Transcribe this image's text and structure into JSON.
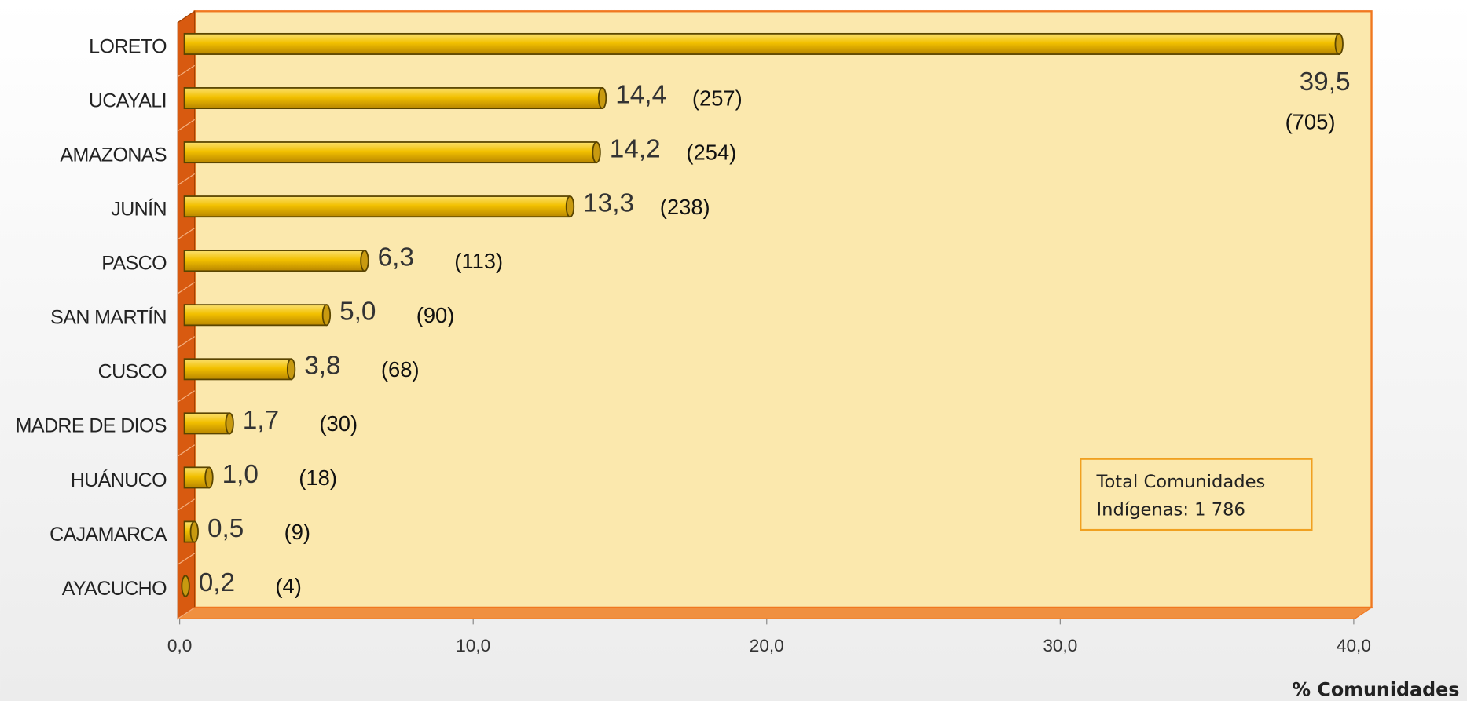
{
  "chart_data": {
    "type": "bar",
    "orientation": "horizontal",
    "categories": [
      "LORETO",
      "UCAYALI",
      "AMAZONAS",
      "JUNÍN",
      "PASCO",
      "SAN MARTÍN",
      "CUSCO",
      "MADRE DE DIOS",
      "HUÁNUCO",
      "CAJAMARCA",
      "AYACUCHO"
    ],
    "values": [
      39.5,
      14.4,
      14.2,
      13.3,
      6.3,
      5.0,
      3.8,
      1.7,
      1.0,
      0.5,
      0.2
    ],
    "value_labels": [
      "39,5",
      "14,4",
      "14,2",
      "13,3",
      "6,3",
      "5,0",
      "3,8",
      "1,7",
      "1,0",
      "0,5",
      "0,2"
    ],
    "count_labels": [
      "(705)",
      "(257)",
      "(254)",
      "(238)",
      "(113)",
      "(90)",
      "(68)",
      "(30)",
      "(18)",
      "(9)",
      "(4)"
    ],
    "color": "#e8b400",
    "xlim": [
      0,
      40
    ],
    "xticks": [
      {
        "value": 0,
        "label": "0,0"
      },
      {
        "value": 10,
        "label": "10,0"
      },
      {
        "value": 20,
        "label": "20,0"
      },
      {
        "value": 30,
        "label": "30,0"
      },
      {
        "value": 40,
        "label": "40,0"
      }
    ],
    "x_label": "% Comunidades",
    "annotation": [
      "Total Comunidades",
      "Indígenas: 1 786"
    ]
  }
}
